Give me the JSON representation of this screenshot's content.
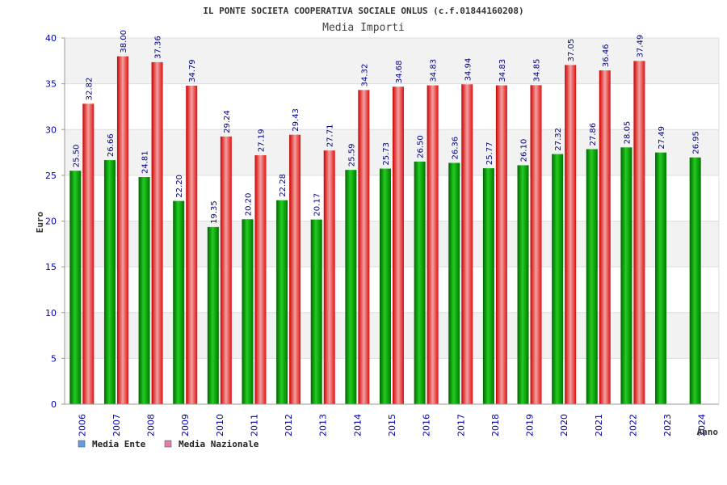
{
  "chart_data": {
    "type": "bar",
    "title": "IL PONTE SOCIETA COOPERATIVA SOCIALE ONLUS (c.f.01844160208)",
    "subtitle": "Media Importi",
    "xlabel": "Anno",
    "ylabel": "Euro",
    "ylim": [
      0,
      40
    ],
    "yticks": [
      "0",
      "5",
      "10",
      "15",
      "20",
      "25",
      "30",
      "35",
      "40"
    ],
    "categories": [
      "2006",
      "2007",
      "2008",
      "2009",
      "2010",
      "2011",
      "2012",
      "2013",
      "2014",
      "2015",
      "2016",
      "2017",
      "2018",
      "2019",
      "2020",
      "2021",
      "2022",
      "2023",
      "2024"
    ],
    "series": [
      {
        "name": "Media Ente",
        "color": "#00aa00",
        "legend_color": "#5f9ee6",
        "values": [
          25.5,
          26.66,
          24.81,
          22.2,
          19.35,
          20.2,
          22.28,
          20.17,
          25.59,
          25.73,
          26.5,
          26.36,
          25.77,
          26.1,
          27.32,
          27.86,
          28.05,
          27.49,
          26.95
        ],
        "labels": [
          "25.50",
          "26.66",
          "24.81",
          "22.20",
          "19.35",
          "20.20",
          "22.28",
          "20.17",
          "25.59",
          "25.73",
          "26.50",
          "26.36",
          "25.77",
          "26.10",
          "27.32",
          "27.86",
          "28.05",
          "27.49",
          "26.95"
        ]
      },
      {
        "name": "Media Nazionale",
        "color": "#ee1111",
        "legend_color": "#e080b0",
        "values": [
          32.82,
          38.0,
          37.36,
          34.79,
          29.24,
          27.19,
          29.43,
          27.71,
          34.32,
          34.68,
          34.83,
          34.94,
          34.83,
          34.85,
          37.05,
          36.46,
          37.49,
          null,
          null
        ],
        "labels": [
          "32.82",
          "38.00",
          "37.36",
          "34.79",
          "29.24",
          "27.19",
          "29.43",
          "27.71",
          "34.32",
          "34.68",
          "34.83",
          "34.94",
          "34.83",
          "34.85",
          "37.05",
          "36.46",
          "37.49",
          null,
          null
        ]
      }
    ],
    "grid": true,
    "legend_position": "bottom-left"
  }
}
